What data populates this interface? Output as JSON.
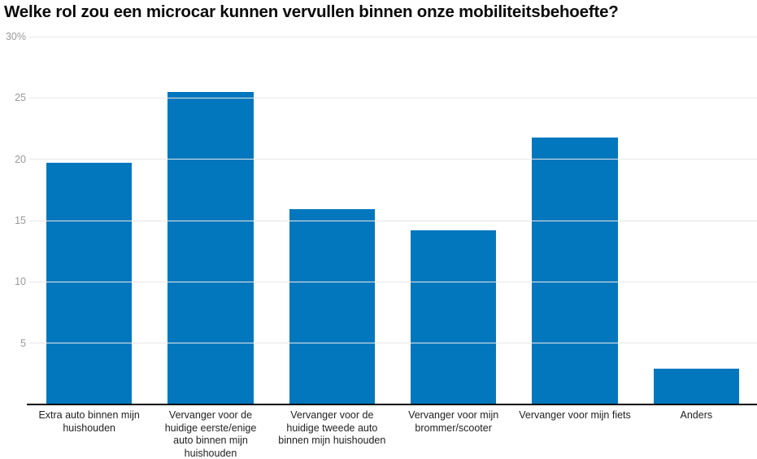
{
  "page": {
    "background": "#ffffff"
  },
  "chart_data": {
    "type": "bar",
    "title": "Welke rol zou een microcar kunnen vervullen binnen onze mobiliteitsbehoefte?",
    "categories": [
      "Extra auto binnen mijn huishouden",
      "Vervanger voor de huidige eerste/enige auto binnen mijn huishouden",
      "Vervanger voor de huidige tweede auto binnen mijn huishouden",
      "Vervanger voor mijn brommer/scooter",
      "Vervanger voor mijn fiets",
      "Anders"
    ],
    "values": [
      19.7,
      25.5,
      15.9,
      14.2,
      21.8,
      2.9
    ],
    "unit": "%",
    "xlabel": "",
    "ylabel": "",
    "ylim": [
      0,
      30
    ],
    "ytick_interval": 5,
    "yticks": [
      {
        "value": 5,
        "label": "5"
      },
      {
        "value": 10,
        "label": "10"
      },
      {
        "value": 15,
        "label": "15"
      },
      {
        "value": 20,
        "label": "20"
      },
      {
        "value": 25,
        "label": "25"
      },
      {
        "value": 30,
        "label": "30%"
      }
    ],
    "grid": true,
    "legend": "none",
    "bar_width_fraction": 0.705,
    "colors": {
      "bar": "#0277bd",
      "gridline": "#e7e7e7",
      "baseline": "#000000",
      "ytick_label": "#999999",
      "xtick_label": "#1f1f1f",
      "title": "#0a0a0a"
    }
  }
}
